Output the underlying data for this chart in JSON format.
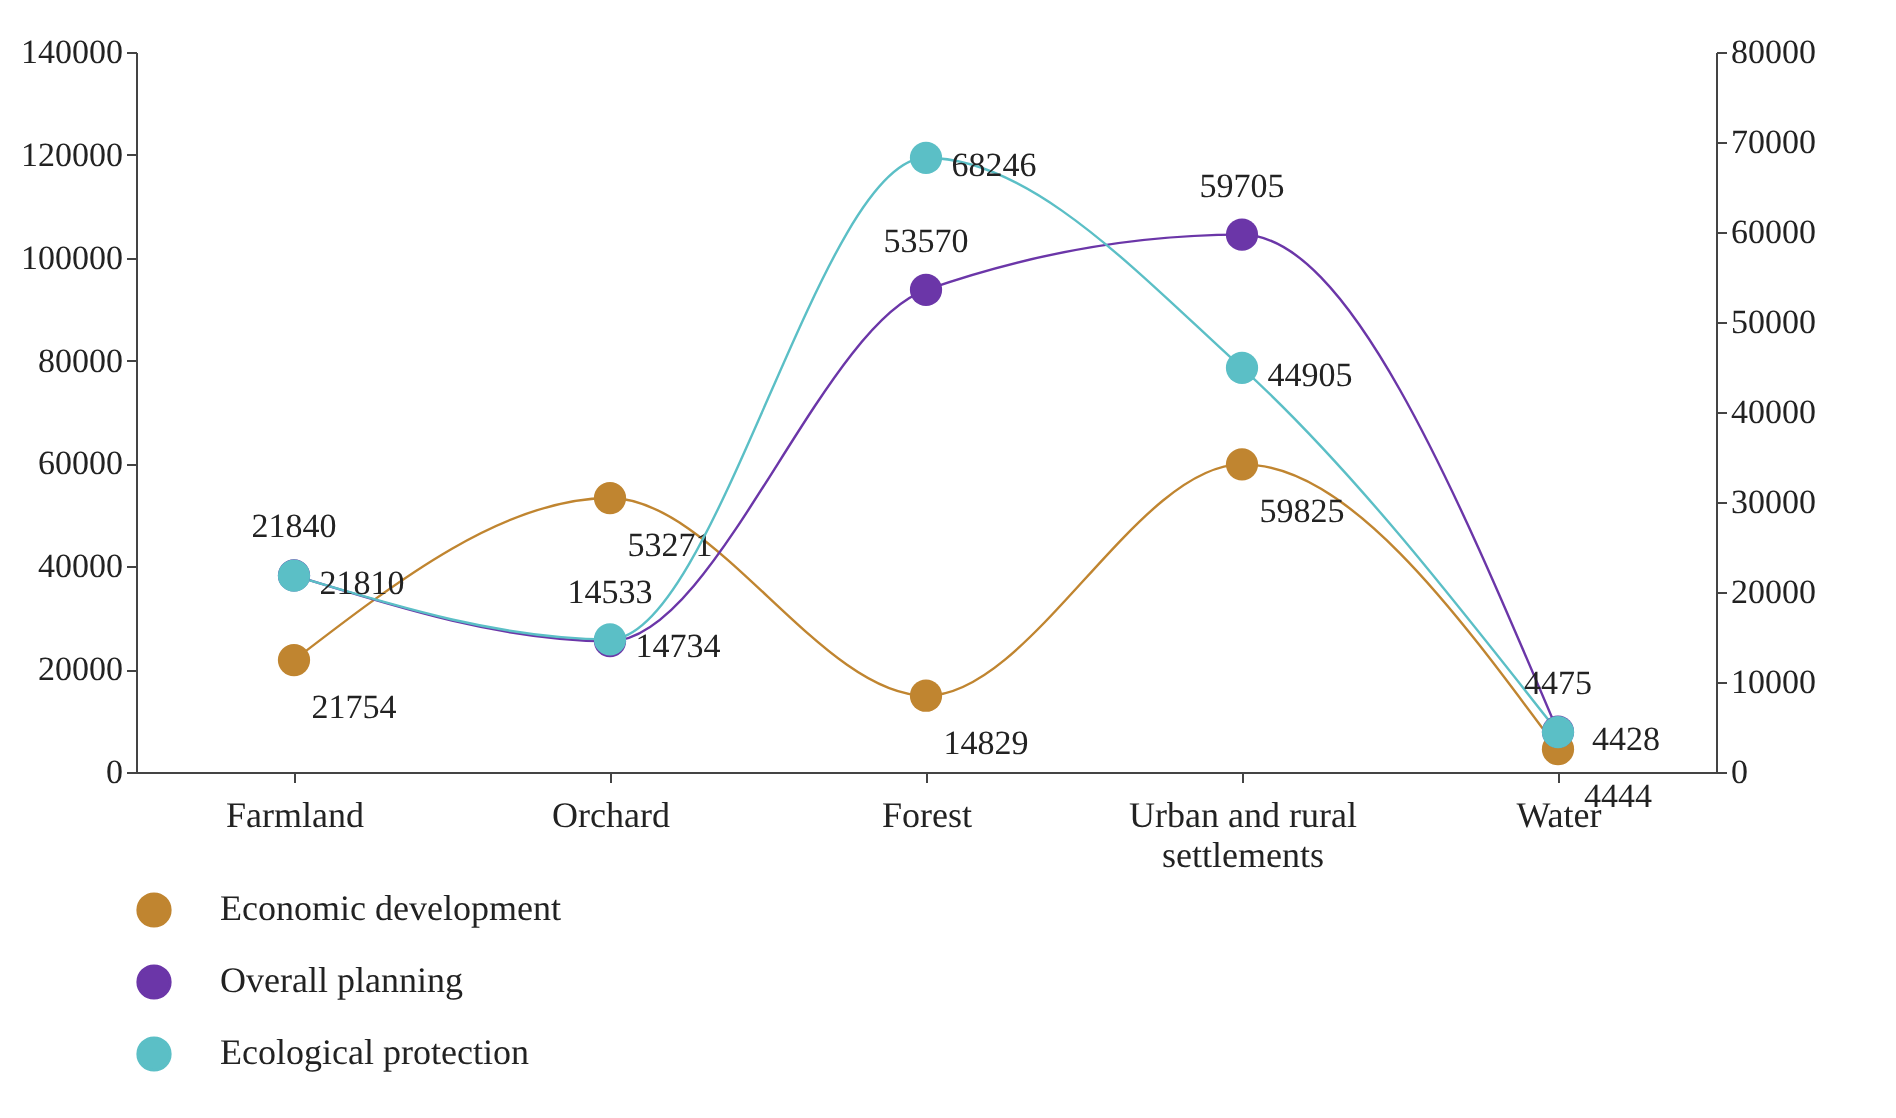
{
  "chart_data": {
    "type": "line",
    "categories": [
      "Farmland",
      "Orchard",
      "Forest",
      "Urban and rural settlements",
      "Water"
    ],
    "series": [
      {
        "name": "Economic development",
        "color": "#c08530",
        "values": [
          21754,
          53271,
          14829,
          59825,
          4444
        ]
      },
      {
        "name": "Overall planning",
        "color": "#6b36a8",
        "values": [
          21840,
          14533,
          53570,
          59705,
          4475
        ],
        "axis": "y2"
      },
      {
        "name": "Ecological protection",
        "color": "#5bbfc6",
        "values": [
          21810,
          14734,
          68246,
          44905,
          4428
        ],
        "axis": "y2"
      }
    ],
    "ylim": [
      0,
      140000
    ],
    "yticks": [
      0,
      20000,
      40000,
      60000,
      80000,
      100000,
      120000,
      140000
    ],
    "y2lim": [
      0,
      80000
    ],
    "y2ticks": [
      0,
      10000,
      20000,
      30000,
      40000,
      50000,
      60000,
      70000,
      80000
    ],
    "data_labels": true,
    "marker": "circle",
    "legend": "bottom left",
    "grid": false
  }
}
